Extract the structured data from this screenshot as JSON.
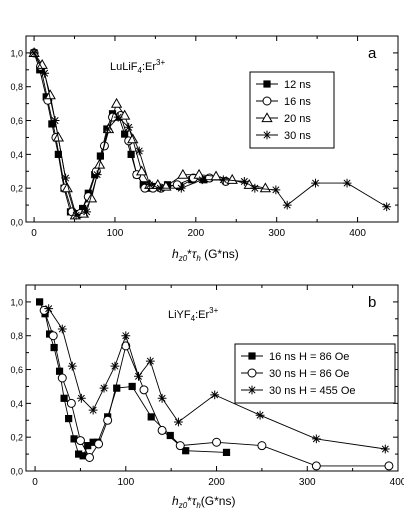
{
  "chart_data": [
    {
      "type": "line",
      "panel_label": "a",
      "sample_label": "LuLiF",
      "sample_sub": "4",
      "sample_rest": ":Er",
      "sample_sup": "3+",
      "xlabel_parts": [
        "h",
        "z0",
        "*",
        "τ",
        "h",
        " (G*ns)"
      ],
      "ylabel": "",
      "xlim": [
        -10,
        450
      ],
      "ylim": [
        0,
        1.1
      ],
      "xticks": [
        0,
        100,
        200,
        300,
        400
      ],
      "xtick_labels": [
        "0",
        "100",
        "200",
        "300",
        "400"
      ],
      "yticks": [
        0,
        0.2,
        0.4,
        0.6,
        0.8,
        1.0
      ],
      "ytick_labels": [
        "0,0",
        "0,2",
        "0,4",
        "0,6",
        "0,8",
        "1,0"
      ],
      "legend_position": "right",
      "series": [
        {
          "name": "12 ns",
          "marker": "filled-square",
          "x": [
            0,
            7,
            15,
            22,
            30,
            37,
            45,
            52,
            60,
            67,
            75,
            82,
            90,
            97,
            105,
            112,
            120,
            127,
            135,
            142,
            150,
            165,
            180,
            195,
            210
          ],
          "y": [
            1.0,
            0.9,
            0.74,
            0.58,
            0.4,
            0.2,
            0.06,
            0.05,
            0.08,
            0.17,
            0.28,
            0.39,
            0.55,
            0.64,
            0.62,
            0.52,
            0.4,
            0.28,
            0.22,
            0.2,
            0.21,
            0.22,
            0.21,
            0.25,
            0.25
          ]
        },
        {
          "name": "16 ns",
          "marker": "open-circle",
          "x": [
            0,
            8,
            17,
            27,
            38,
            47,
            57,
            67,
            77,
            87,
            97,
            107,
            117,
            127,
            137,
            147,
            157,
            177,
            197,
            217,
            237
          ],
          "y": [
            1.0,
            0.92,
            0.72,
            0.5,
            0.2,
            0.06,
            0.05,
            0.15,
            0.3,
            0.45,
            0.62,
            0.63,
            0.48,
            0.28,
            0.2,
            0.2,
            0.2,
            0.22,
            0.26,
            0.26,
            0.24
          ]
        },
        {
          "name": "20 ns",
          "marker": "open-triangle",
          "x": [
            0,
            10,
            20,
            30,
            41,
            51,
            61,
            71,
            81,
            92,
            102,
            112,
            122,
            133,
            143,
            153,
            163,
            184,
            204,
            225,
            245,
            266,
            286
          ],
          "y": [
            1.0,
            0.93,
            0.75,
            0.5,
            0.2,
            0.04,
            0.05,
            0.14,
            0.34,
            0.55,
            0.7,
            0.63,
            0.49,
            0.3,
            0.22,
            0.22,
            0.21,
            0.28,
            0.28,
            0.27,
            0.25,
            0.22,
            0.2
          ]
        },
        {
          "name": "30 ns",
          "marker": "star",
          "x": [
            0,
            13,
            26,
            39,
            52,
            65,
            78,
            91,
            104,
            117,
            130,
            143,
            156,
            182,
            208,
            234,
            260,
            273,
            299,
            313,
            348,
            387,
            436
          ],
          "y": [
            1.0,
            0.88,
            0.6,
            0.26,
            0.04,
            0.06,
            0.28,
            0.55,
            0.62,
            0.56,
            0.42,
            0.22,
            0.2,
            0.2,
            0.25,
            0.25,
            0.24,
            0.2,
            0.19,
            0.1,
            0.23,
            0.23,
            0.09
          ]
        }
      ]
    },
    {
      "type": "line",
      "panel_label": "b",
      "sample_label": "LiYF",
      "sample_sub": "4",
      "sample_rest": ":Er",
      "sample_sup": "3+",
      "xlabel_parts": [
        "h",
        "z0",
        "*",
        "τ",
        "h",
        "(G*ns)"
      ],
      "ylabel": "",
      "xlim": [
        -10,
        400
      ],
      "ylim": [
        0,
        1.1
      ],
      "xticks": [
        0,
        100,
        200,
        300,
        400
      ],
      "xtick_labels": [
        "0",
        "100",
        "200",
        "300",
        "400"
      ],
      "yticks": [
        0,
        0.2,
        0.4,
        0.6,
        0.8,
        1.0
      ],
      "ytick_labels": [
        "0,0",
        "0,2",
        "0,4",
        "0,6",
        "0,8",
        "1,0"
      ],
      "legend_position": "right",
      "series": [
        {
          "name": "16 ns  H = 86 Oe",
          "marker": "filled-square",
          "x": [
            5,
            11,
            16,
            21,
            27,
            32,
            37,
            43,
            48,
            53,
            58,
            64,
            69,
            80,
            90,
            107,
            128,
            149,
            166,
            211
          ],
          "y": [
            1.0,
            0.93,
            0.81,
            0.73,
            0.59,
            0.43,
            0.31,
            0.19,
            0.1,
            0.09,
            0.15,
            0.17,
            0.17,
            0.32,
            0.49,
            0.5,
            0.32,
            0.21,
            0.12,
            0.11
          ]
        },
        {
          "name": "30 ns  H = 86 Oe",
          "marker": "open-circle",
          "x": [
            10,
            20,
            30,
            40,
            50,
            60,
            70,
            80,
            100,
            120,
            140,
            160,
            200,
            250,
            310,
            390
          ],
          "y": [
            0.95,
            0.8,
            0.55,
            0.4,
            0.18,
            0.08,
            0.16,
            0.3,
            0.74,
            0.48,
            0.24,
            0.15,
            0.17,
            0.15,
            0.03,
            0.03
          ]
        },
        {
          "name": "30 ns  H = 455 Oe",
          "marker": "star",
          "x": [
            15,
            30,
            41,
            51,
            64,
            76,
            88,
            100,
            114,
            127,
            140,
            158,
            198,
            248,
            310,
            386
          ],
          "y": [
            0.96,
            0.84,
            0.62,
            0.43,
            0.36,
            0.49,
            0.62,
            0.8,
            0.56,
            0.65,
            0.43,
            0.29,
            0.45,
            0.33,
            0.19,
            0.13
          ]
        }
      ]
    }
  ]
}
